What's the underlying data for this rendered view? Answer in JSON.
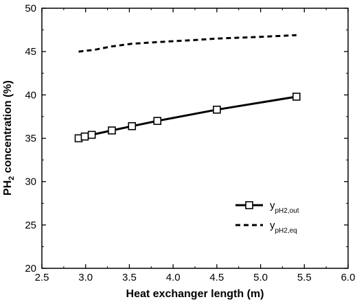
{
  "chart_data": {
    "type": "line",
    "xlabel": "Heat exchanger length (m)",
    "ylabel": {
      "main": "PH",
      "sub": "2",
      "rest": " concentration (%)"
    },
    "xlim": [
      2.5,
      6.0
    ],
    "ylim": [
      20,
      50
    ],
    "xticks": [
      "2.5",
      "3.0",
      "3.5",
      "4.0",
      "4.5",
      "5.0",
      "5.5",
      "6.0"
    ],
    "yticks": [
      "20",
      "25",
      "30",
      "35",
      "40",
      "45",
      "50"
    ],
    "grid": false,
    "legend_position": "bottom-right",
    "series": [
      {
        "name": {
          "main": "y",
          "sub": "pH2,out"
        },
        "style": "solid-square",
        "color": "#000000",
        "x": [
          2.92,
          2.99,
          3.07,
          3.3,
          3.53,
          3.82,
          4.5,
          5.41
        ],
        "y": [
          35.0,
          35.2,
          35.4,
          35.9,
          36.4,
          37.0,
          38.3,
          39.8
        ]
      },
      {
        "name": {
          "main": "y",
          "sub": "pH2,eq"
        },
        "style": "dashed",
        "color": "#000000",
        "x": [
          2.92,
          3.1,
          3.3,
          3.53,
          3.82,
          4.2,
          4.5,
          5.0,
          5.41
        ],
        "y": [
          45.0,
          45.2,
          45.6,
          45.9,
          46.1,
          46.3,
          46.5,
          46.7,
          46.9
        ]
      }
    ]
  }
}
